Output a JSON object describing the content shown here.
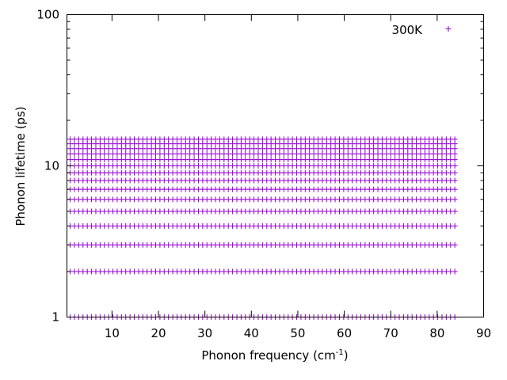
{
  "chart_data": {
    "type": "scatter",
    "title": "",
    "xlabel": "Phonon frequency (cm",
    "xlabel_sup": "-1",
    "xlabel_tail": ")",
    "ylabel": "Phonon lifetime (ps)",
    "xlim": [
      0.3,
      90
    ],
    "ylim": [
      1,
      100
    ],
    "yscale": "log",
    "grid": false,
    "legend_position": "top-right",
    "x_ticks": [
      10,
      20,
      30,
      40,
      50,
      60,
      70,
      80,
      90
    ],
    "y_ticks": [
      1,
      10,
      100
    ],
    "x_tick_labels": [
      "10",
      "20",
      "30",
      "40",
      "50",
      "60",
      "70",
      "80",
      "90"
    ],
    "y_tick_labels": [
      "1",
      "10",
      "100"
    ],
    "colors": {
      "series": "#9400d3",
      "axis": "#000000"
    },
    "series": [
      {
        "name": "300K",
        "x_range": {
          "start": 1,
          "end": 83.8,
          "step": 0.92
        },
        "y_levels": [
          1,
          2,
          3,
          4,
          5,
          6,
          7,
          8,
          9,
          10,
          11,
          12,
          13,
          14,
          15
        ]
      }
    ]
  }
}
